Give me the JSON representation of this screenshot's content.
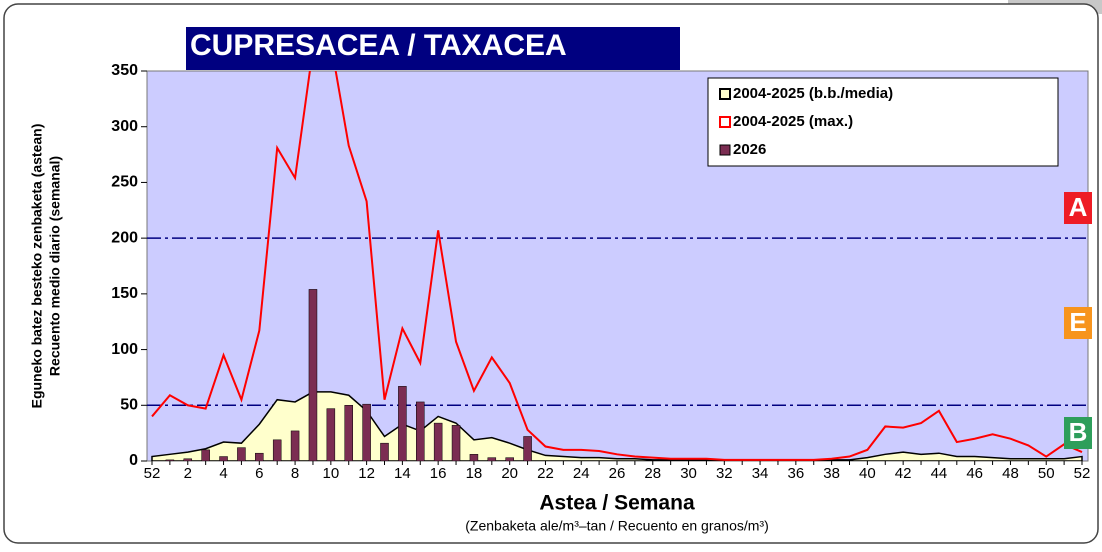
{
  "chart_data": {
    "type": "combo",
    "title": "CUPRESACEA / TAXACEA",
    "ylabel": [
      "Eguneko batez besteko zenbaketa (astean)",
      "Recuento medio diario (semanal)"
    ],
    "xlabel": "Astea / Semana",
    "subtitle": "(Zenbaketa ale/m³–tan / Recuento en granos/m³)",
    "categories": [
      "52",
      null,
      "2",
      null,
      "4",
      null,
      "6",
      null,
      "8",
      null,
      "10",
      null,
      "12",
      null,
      "14",
      null,
      "16",
      null,
      "18",
      null,
      "20",
      null,
      "22",
      null,
      "24",
      null,
      "26",
      null,
      "28",
      null,
      "30",
      null,
      "32",
      null,
      "34",
      null,
      "36",
      null,
      "38",
      null,
      "40",
      null,
      "42",
      null,
      "44",
      null,
      "46",
      null,
      "48",
      null,
      "50",
      null,
      "52"
    ],
    "ylim": [
      0,
      350
    ],
    "yticks": [
      0,
      50,
      100,
      150,
      200,
      250,
      300,
      350
    ],
    "reference_lines": [
      200,
      50
    ],
    "levels": [
      {
        "label": "A",
        "color": "#ee1c25"
      },
      {
        "label": "E",
        "color": "#f7941d"
      },
      {
        "label": "B",
        "color": "#2e9e5b"
      }
    ],
    "series": [
      {
        "name": "2004-2025 (b.b./media)",
        "type": "area",
        "color": "#000000",
        "fill": "#ffffcc",
        "values": [
          4,
          6,
          8,
          11,
          17,
          16,
          33,
          55,
          53,
          62,
          62,
          59,
          45,
          22,
          33,
          27,
          40,
          34,
          19,
          21,
          16,
          10,
          5,
          4,
          3,
          3,
          2,
          2,
          1,
          1,
          1,
          1,
          1,
          0,
          0,
          0,
          0,
          0,
          1,
          1,
          3,
          6,
          8,
          6,
          7,
          4,
          4,
          3,
          2,
          2,
          2,
          2,
          4
        ]
      },
      {
        "name": "2004-2025 (max.)",
        "type": "line",
        "color": "#ff0000",
        "values": [
          40,
          59,
          50,
          47,
          95,
          55,
          117,
          281,
          254,
          370,
          375,
          283,
          233,
          55,
          119,
          88,
          207,
          107,
          63,
          93,
          70,
          28,
          13,
          10,
          10,
          9,
          6,
          4,
          3,
          2,
          2,
          2,
          1,
          1,
          1,
          1,
          1,
          1,
          2,
          4,
          10,
          31,
          30,
          34,
          45,
          17,
          20,
          24,
          20,
          14,
          4,
          15,
          8
        ]
      },
      {
        "name": "2026",
        "type": "bar",
        "color": "#7b2d52",
        "values": [
          0,
          1,
          2,
          10,
          4,
          12,
          7,
          19,
          27,
          154,
          47,
          50,
          51,
          16,
          67,
          53,
          34,
          32,
          6,
          3,
          3,
          22,
          null,
          null,
          null,
          null,
          null,
          null,
          null,
          null,
          null,
          null,
          null,
          null,
          null,
          null,
          null,
          null,
          null,
          null,
          null,
          null,
          null,
          null,
          null,
          null,
          null,
          null,
          null,
          null,
          null,
          null,
          null
        ]
      }
    ]
  }
}
